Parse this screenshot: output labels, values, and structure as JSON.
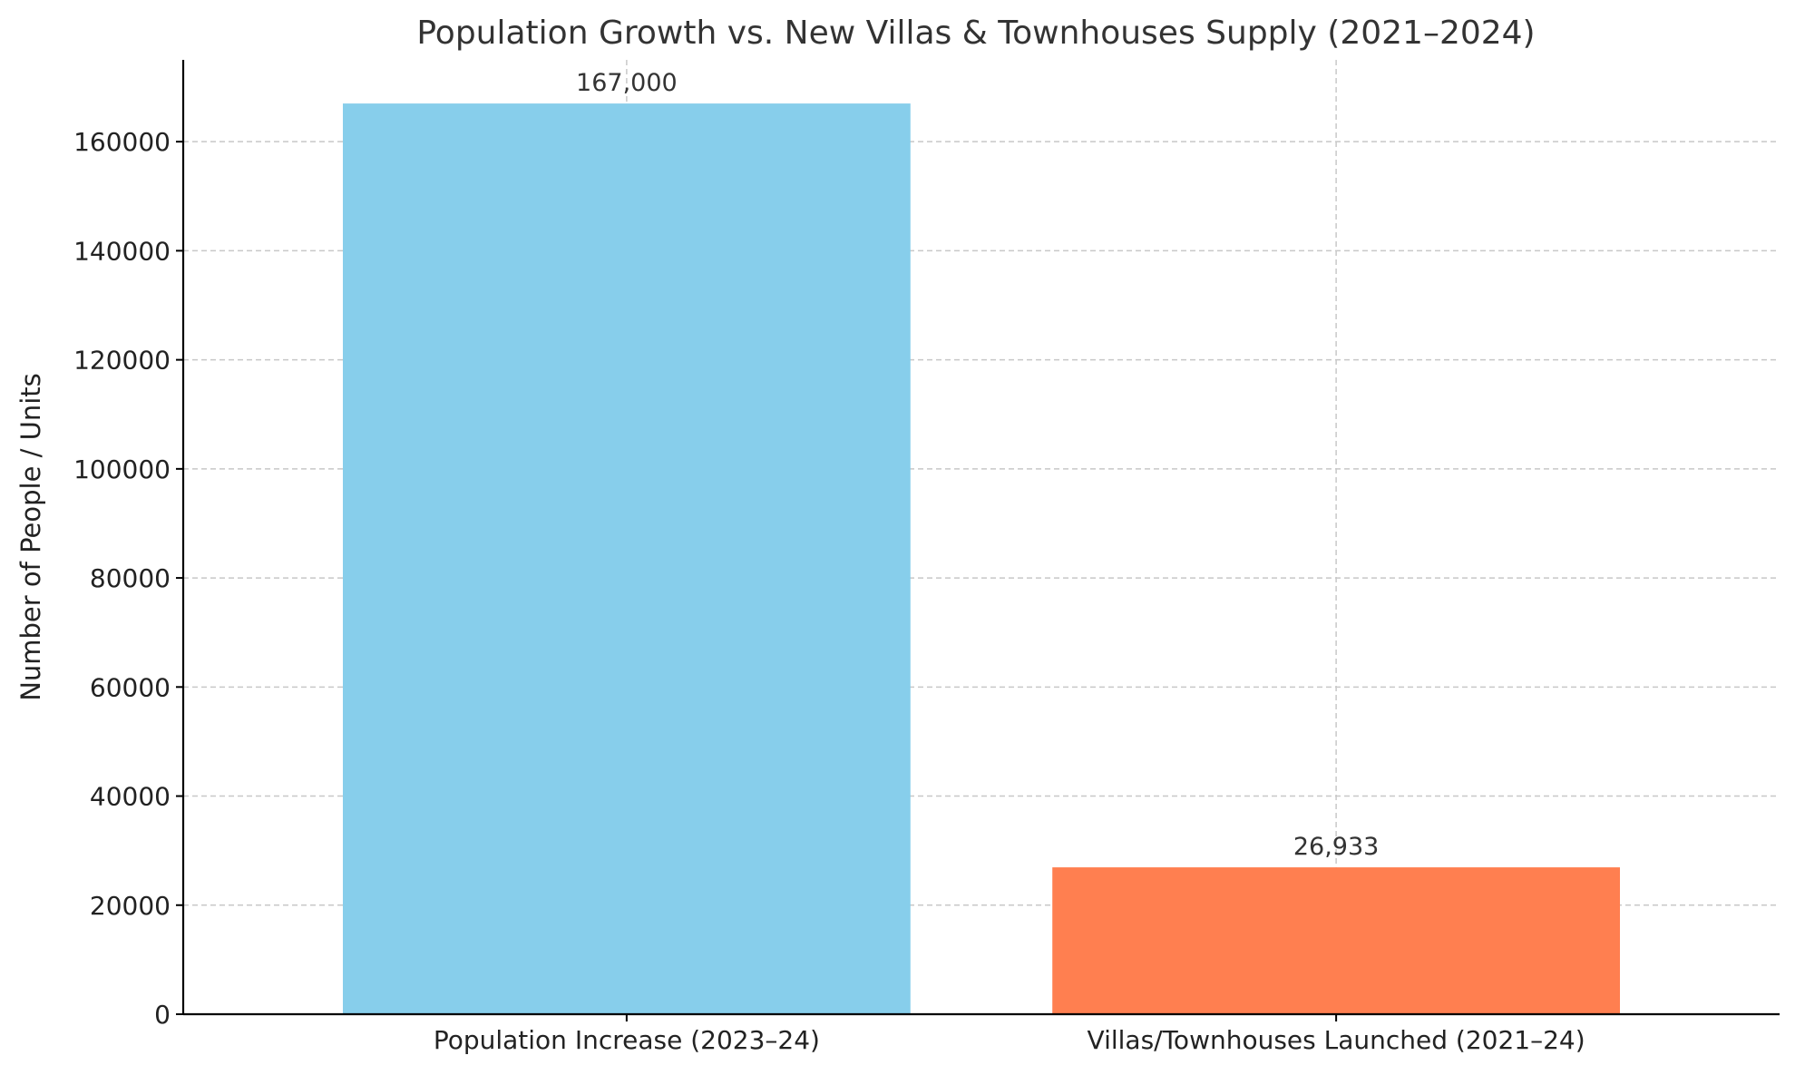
{
  "chart_data": {
    "type": "bar",
    "title": "Population Growth vs. New Villas & Townhouses Supply (2021–2024)",
    "xlabel": "",
    "ylabel": "Number of People / Units",
    "categories": [
      "Population Increase (2023–24)",
      "Villas/Townhouses Launched (2021–24)"
    ],
    "values": [
      167000,
      26933
    ],
    "data_labels": [
      "167,000",
      "26,933"
    ],
    "colors": [
      "#87CEEB",
      "#FF7F50"
    ],
    "ylim": [
      0,
      175000
    ],
    "yticks": [
      0,
      20000,
      40000,
      60000,
      80000,
      100000,
      120000,
      140000,
      160000
    ],
    "grid": true,
    "legend": "none"
  }
}
